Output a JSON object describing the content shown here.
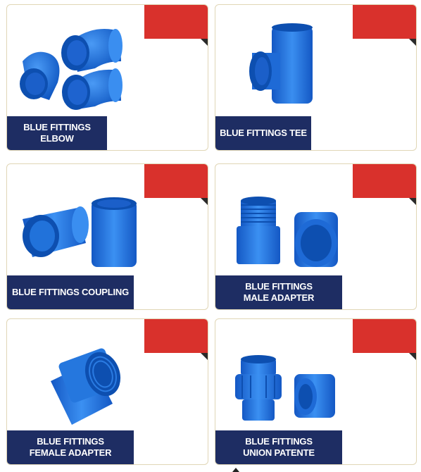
{
  "colors": {
    "ribbon": "#d9312c",
    "label_bg": "#1e2d63",
    "pipe": "#1a6fd6",
    "pipe_light": "#3b8cf0",
    "pipe_dark": "#0d4fb0"
  },
  "products": [
    {
      "line1": "BLUE FITTINGS ELBOW",
      "line2": "",
      "icon": "elbow-fittings-image"
    },
    {
      "line1": "BLUE FITTINGS TEE",
      "line2": "",
      "icon": "tee-fitting-image"
    },
    {
      "line1": "BLUE FITTINGS COUPLING",
      "line2": "",
      "icon": "coupling-fittings-image"
    },
    {
      "line1": "BLUE FITTINGS",
      "line2": "MALE ADAPTER",
      "icon": "male-adapter-image"
    },
    {
      "line1": "BLUE FITTINGS",
      "line2": "FEMALE ADAPTER",
      "icon": "female-adapter-image"
    },
    {
      "line1": "BLUE FITTINGS",
      "line2": "UNION PATENTE",
      "icon": "union-fittings-image"
    }
  ]
}
